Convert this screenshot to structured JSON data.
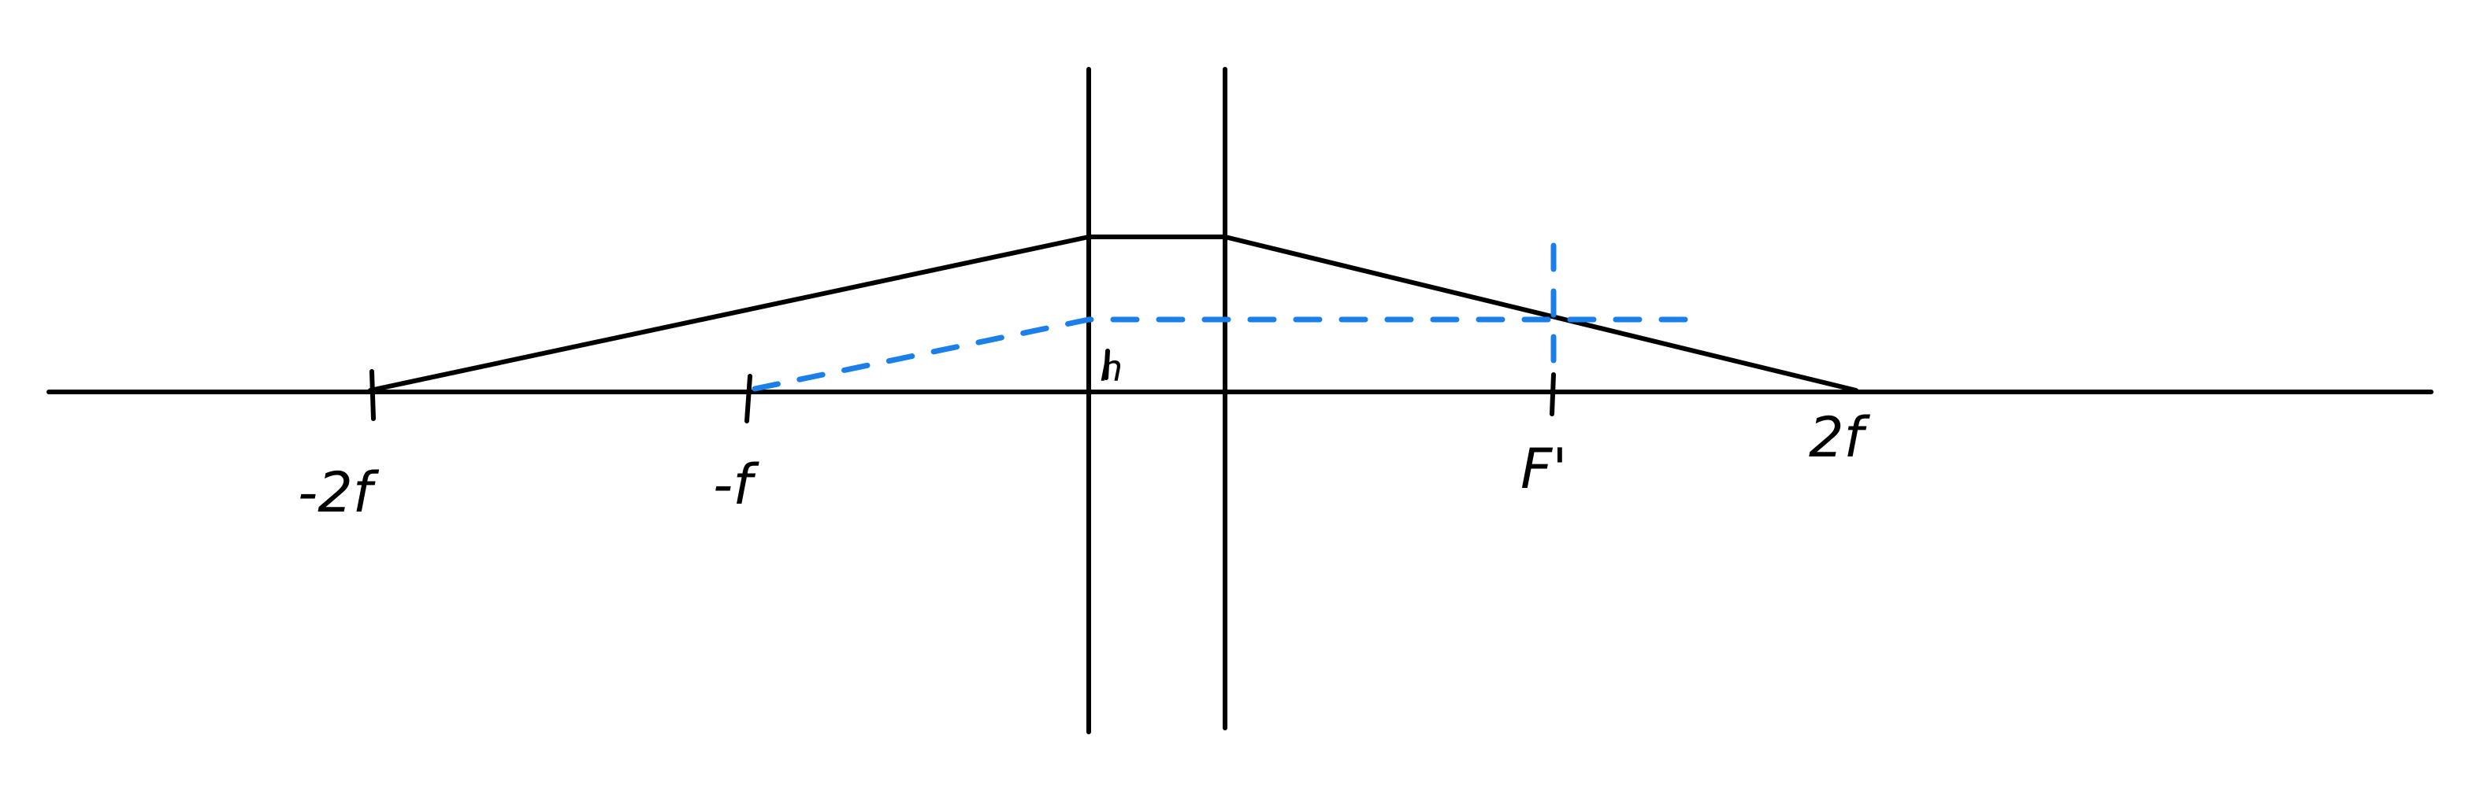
{
  "labels": {
    "neg_2f": "-2f",
    "neg_f": "-f",
    "h": "h",
    "f_prime": "F'",
    "pos_2f": "2f"
  },
  "colors": {
    "ink": "#000000",
    "construction": "#1a7fe8",
    "background": "#ffffff"
  }
}
